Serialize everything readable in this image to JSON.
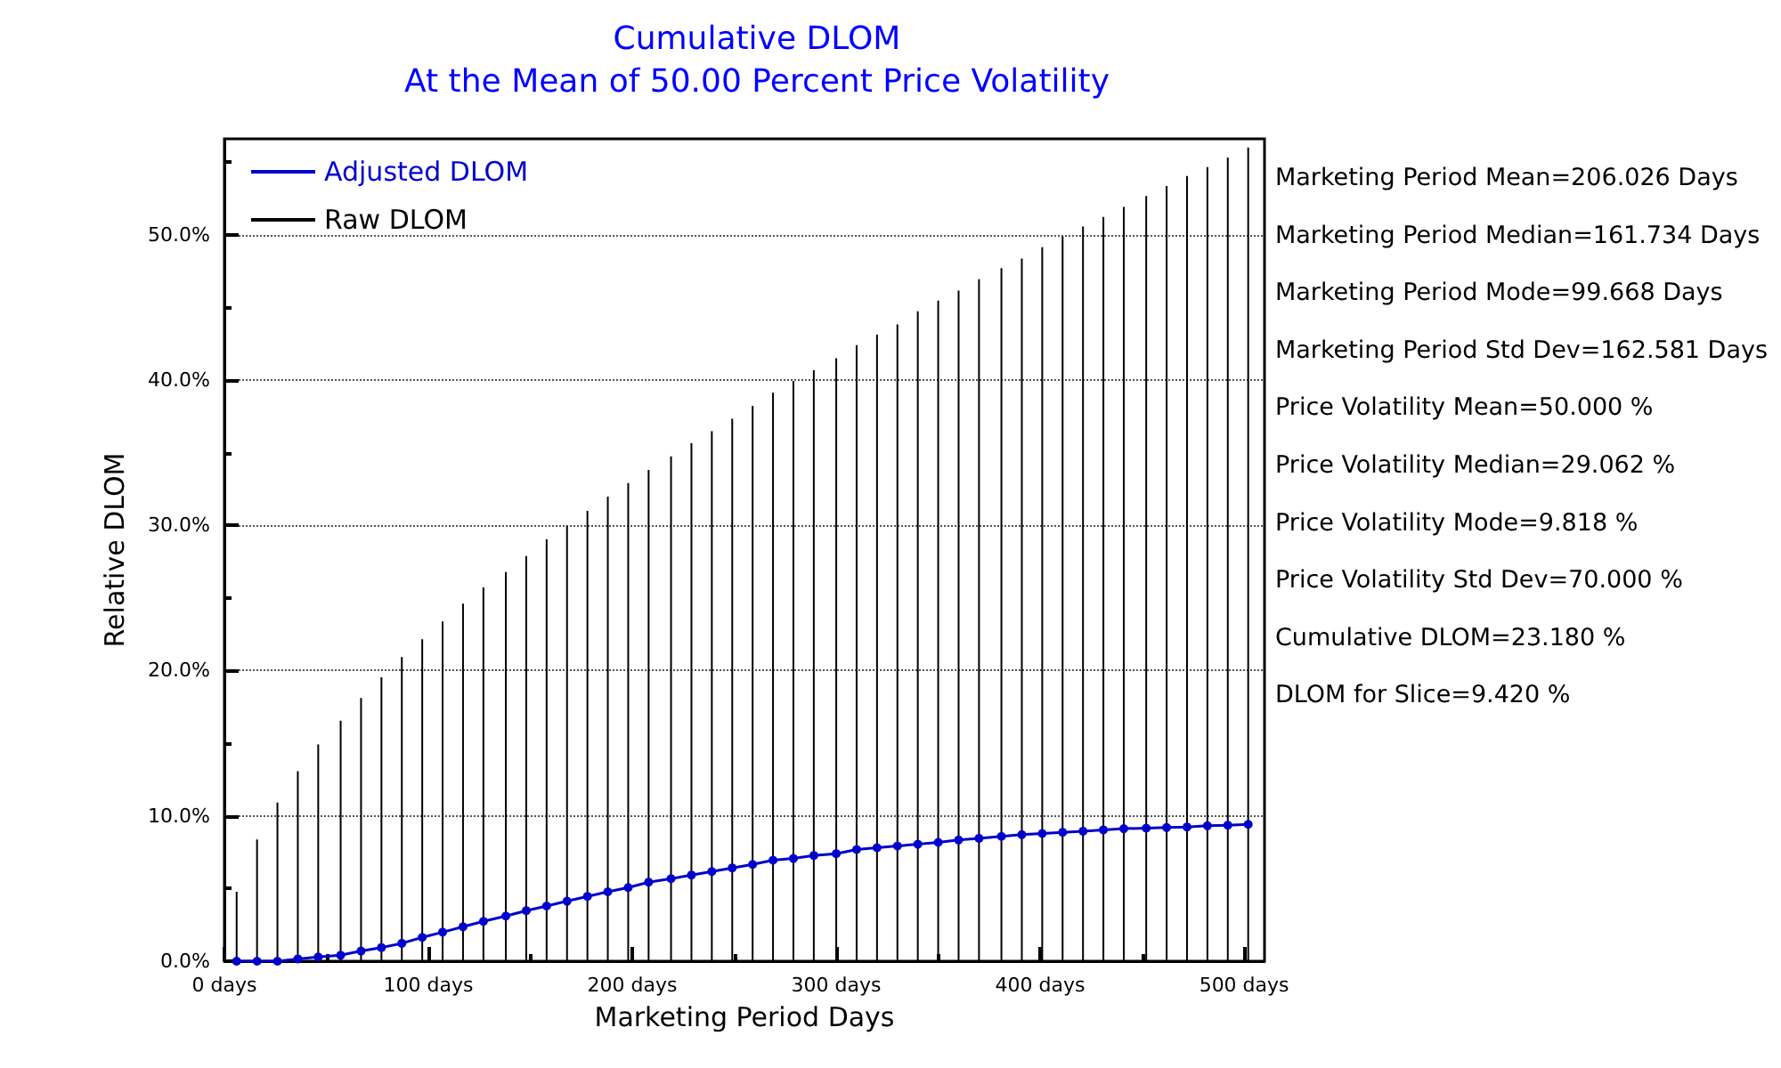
{
  "chart_data": {
    "type": "line",
    "title": "Cumulative DLOM",
    "subtitle": "At the Mean of 50.00 Percent Price Volatility",
    "xlabel": "Marketing Period Days",
    "ylabel": "Relative DLOM",
    "x": [
      6,
      16,
      26,
      36,
      46,
      57,
      67,
      77,
      87,
      97,
      107,
      117,
      127,
      138,
      148,
      158,
      168,
      178,
      188,
      198,
      208,
      219,
      229,
      239,
      249,
      259,
      269,
      279,
      289,
      300,
      310,
      320,
      330,
      340,
      350,
      360,
      370,
      381,
      391,
      401,
      411,
      421,
      431,
      441,
      452,
      462,
      472,
      482,
      492,
      502
    ],
    "series": [
      {
        "name": "Adjusted DLOM",
        "color": "#0000cc",
        "marker": "circle",
        "values": [
          0,
          0,
          0,
          0.16,
          0.29,
          0.41,
          0.7,
          0.94,
          1.23,
          1.64,
          2.0,
          2.37,
          2.74,
          3.11,
          3.48,
          3.8,
          4.13,
          4.46,
          4.78,
          5.07,
          5.44,
          5.68,
          5.93,
          6.17,
          6.42,
          6.66,
          6.95,
          7.07,
          7.28,
          7.4,
          7.69,
          7.81,
          7.93,
          8.05,
          8.18,
          8.34,
          8.46,
          8.59,
          8.71,
          8.79,
          8.87,
          8.95,
          9.04,
          9.12,
          9.16,
          9.2,
          9.24,
          9.32,
          9.36,
          9.42
        ]
      },
      {
        "name": "Raw DLOM",
        "type": "bar",
        "color": "#000000",
        "values": [
          4.78,
          8.38,
          10.92,
          13.08,
          14.92,
          16.56,
          18.11,
          19.54,
          20.93,
          22.16,
          23.38,
          24.61,
          25.72,
          26.78,
          27.88,
          29.03,
          29.97,
          30.99,
          31.97,
          32.91,
          33.81,
          34.75,
          35.65,
          36.47,
          37.33,
          38.23,
          39.12,
          39.94,
          40.68,
          41.5,
          42.4,
          43.13,
          43.83,
          44.73,
          45.46,
          46.16,
          46.93,
          47.71,
          48.36,
          49.14,
          49.88,
          50.57,
          51.23,
          51.92,
          52.66,
          53.35,
          54.05,
          54.66,
          55.31,
          56.01
        ]
      }
    ],
    "xlim": [
      0,
      510
    ],
    "xticks": [
      {
        "value": 0,
        "label": "0 days"
      },
      {
        "value": 100,
        "label": "100 days"
      },
      {
        "value": 200,
        "label": "200 days"
      },
      {
        "value": 300,
        "label": "300 days"
      },
      {
        "value": 400,
        "label": "400 days"
      },
      {
        "value": 500,
        "label": "500 days"
      }
    ],
    "ylim": [
      0,
      56.6
    ],
    "yticks": [
      {
        "value": 0,
        "label": "0.0%"
      },
      {
        "value": 10,
        "label": "10.0%"
      },
      {
        "value": 20,
        "label": "20.0%"
      },
      {
        "value": 30,
        "label": "30.0%"
      },
      {
        "value": 40,
        "label": "40.0%"
      },
      {
        "value": 50,
        "label": "50.0%"
      }
    ],
    "grid": "y",
    "legend": "top left",
    "annotations": [
      "Marketing Period Mean=206.026 Days",
      "Marketing Period Median=161.734 Days",
      "Marketing Period Mode=99.668 Days",
      "Marketing Period Std Dev=162.581 Days",
      "Price Volatility Mean=50.000 %",
      "Price Volatility Median=29.062 %",
      "Price Volatility Mode=9.818 %",
      "Price Volatility Std Dev=70.000 %",
      "Cumulative DLOM=23.180 %",
      "DLOM for Slice=9.420 %"
    ]
  }
}
